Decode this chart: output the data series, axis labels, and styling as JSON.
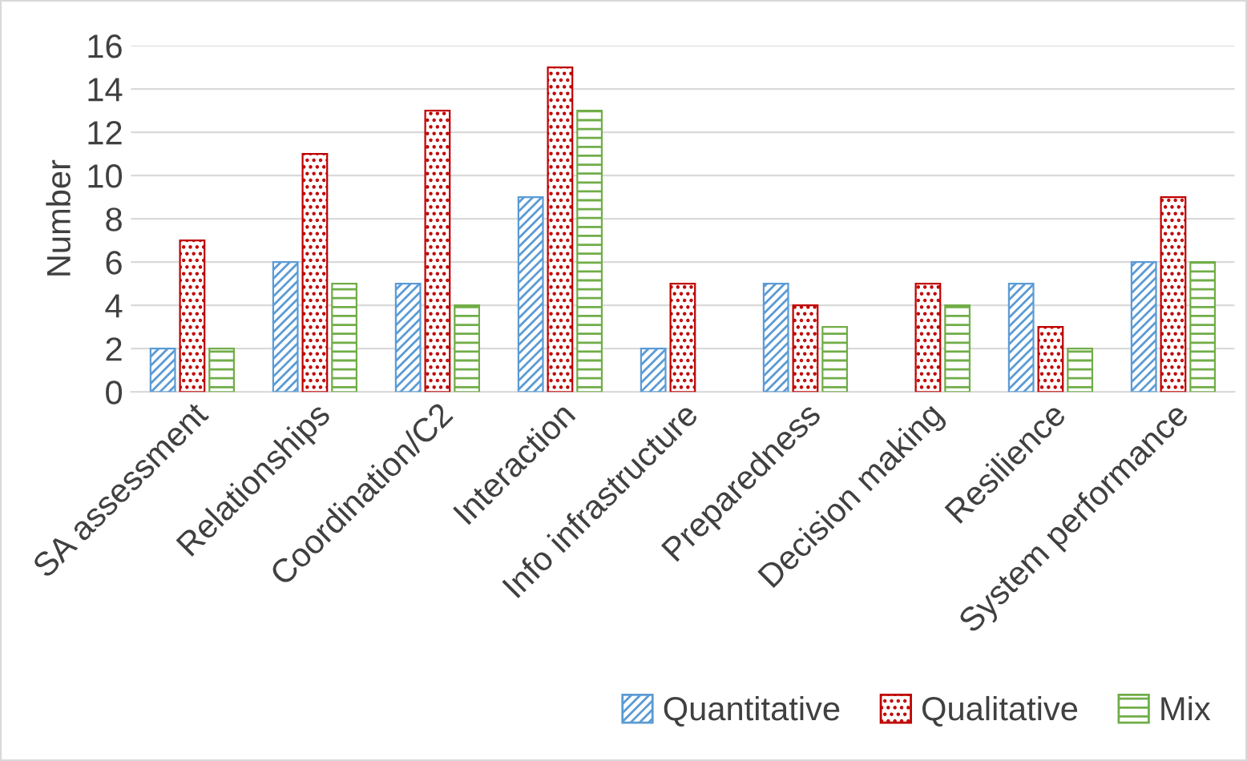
{
  "chart_data": {
    "type": "bar",
    "ylabel": "Number",
    "categories": [
      "SA assessment",
      "Relationships",
      "Coordination/C2",
      "Interaction",
      "Info infrastructure",
      "Preparedness",
      "Decision making",
      "Resilience",
      "System performance"
    ],
    "series": [
      {
        "name": "Quantitative",
        "color": "#5b9bd5",
        "values": [
          2,
          6,
          5,
          9,
          2,
          5,
          null,
          5,
          6
        ]
      },
      {
        "name": "Qualitative",
        "color": "#c00000",
        "values": [
          7,
          11,
          13,
          15,
          5,
          4,
          5,
          3,
          9
        ]
      },
      {
        "name": "Mix",
        "color": "#70ad47",
        "values": [
          2,
          5,
          4,
          13,
          null,
          3,
          4,
          2,
          6
        ]
      }
    ],
    "ylim": [
      0,
      16
    ],
    "yticks": [
      0,
      2,
      4,
      6,
      8,
      10,
      12,
      14,
      16
    ],
    "grid": "y",
    "legend": "bottom right"
  }
}
